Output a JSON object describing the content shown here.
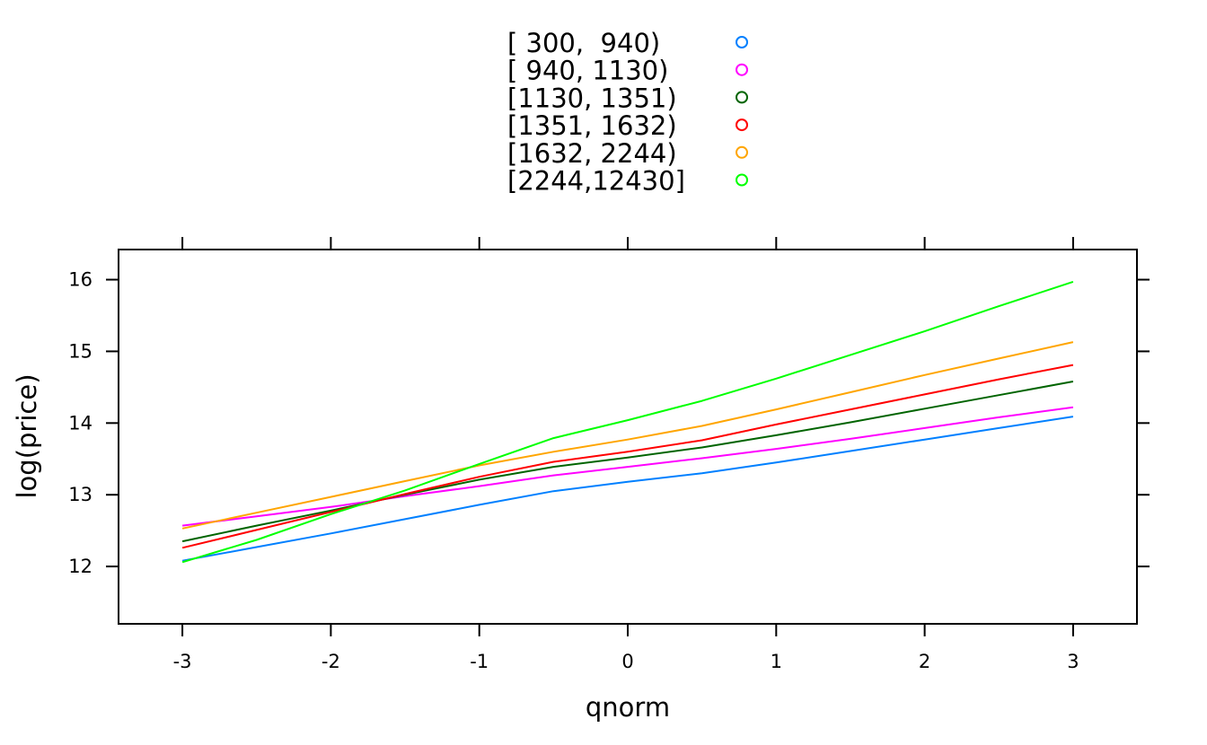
{
  "chart_data": {
    "type": "line",
    "xlabel": "qnorm",
    "ylabel": "log(price)",
    "xlim": [
      -3.43,
      3.43
    ],
    "ylim": [
      11.2,
      16.42
    ],
    "x_ticks": [
      -3,
      -2,
      -1,
      0,
      1,
      2,
      3
    ],
    "x_tick_labels": [
      "-3",
      "-2",
      "-1",
      "0",
      "1",
      "2",
      "3"
    ],
    "y_ticks": [
      12,
      13,
      14,
      15,
      16
    ],
    "y_tick_labels": [
      "12",
      "13",
      "14",
      "15",
      "16"
    ],
    "grid": false,
    "legend_position": "top",
    "x": [
      -3,
      -2.5,
      -2,
      -1.5,
      -1,
      -0.5,
      0,
      0.5,
      1,
      1.5,
      2,
      2.5,
      3
    ],
    "series": [
      {
        "name": "[ 300,  940)",
        "color": "#0080ff",
        "values": [
          12.08,
          12.27,
          12.46,
          12.66,
          12.86,
          13.05,
          13.18,
          13.3,
          13.45,
          13.61,
          13.77,
          13.93,
          14.09
        ]
      },
      {
        "name": "[ 940, 1130)",
        "color": "#ff00ff",
        "values": [
          12.57,
          12.7,
          12.83,
          12.98,
          13.12,
          13.27,
          13.39,
          13.51,
          13.64,
          13.78,
          13.93,
          14.08,
          14.22
        ]
      },
      {
        "name": "[1130, 1351)",
        "color": "#006400",
        "values": [
          12.35,
          12.57,
          12.78,
          13.0,
          13.21,
          13.39,
          13.52,
          13.66,
          13.83,
          14.01,
          14.2,
          14.39,
          14.58
        ]
      },
      {
        "name": "[1351, 1632)",
        "color": "#ff0000",
        "values": [
          12.26,
          12.51,
          12.76,
          13.01,
          13.25,
          13.46,
          13.6,
          13.76,
          13.98,
          14.19,
          14.4,
          14.61,
          14.81
        ]
      },
      {
        "name": "[1632, 2244)",
        "color": "#ffa500",
        "values": [
          12.53,
          12.75,
          12.97,
          13.19,
          13.41,
          13.6,
          13.77,
          13.96,
          14.19,
          14.43,
          14.67,
          14.9,
          15.13
        ]
      },
      {
        "name": "[2244,12430]",
        "color": "#00ff00",
        "values": [
          12.06,
          12.37,
          12.73,
          13.06,
          13.43,
          13.79,
          14.04,
          14.31,
          14.62,
          14.95,
          15.28,
          15.63,
          15.97
        ]
      }
    ]
  }
}
